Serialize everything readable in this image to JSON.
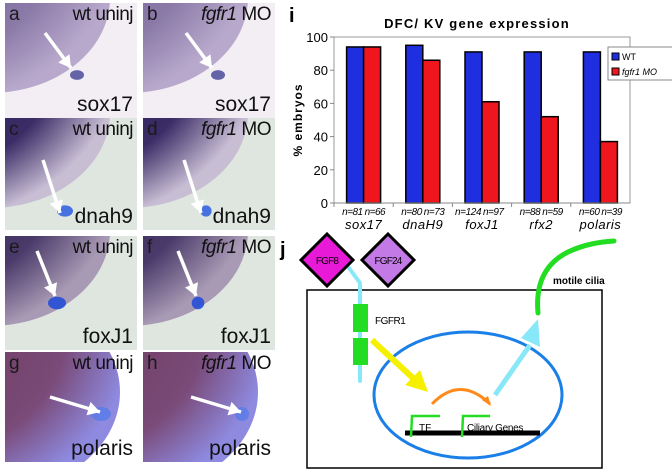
{
  "panels": [
    {
      "letter": "a",
      "condition": "wt uninj",
      "gene": "sox17",
      "mo": false
    },
    {
      "letter": "b",
      "condition_gene": "fgfr1",
      "condition": " MO",
      "gene": "sox17",
      "mo": true
    },
    {
      "letter": "c",
      "condition": "wt uninj",
      "gene": "dnah9",
      "mo": false
    },
    {
      "letter": "d",
      "condition_gene": "fgfr1",
      "condition": " MO",
      "gene": "dnah9",
      "mo": true
    },
    {
      "letter": "e",
      "condition": "wt uninj",
      "gene": "foxJ1",
      "mo": false
    },
    {
      "letter": "f",
      "condition_gene": "fgfr1",
      "condition": " MO",
      "gene": "foxJ1",
      "mo": true
    },
    {
      "letter": "g",
      "condition": "wt uninj",
      "gene": "polaris",
      "mo": false
    },
    {
      "letter": "h",
      "condition_gene": "fgfr1",
      "condition": " MO",
      "gene": "polaris",
      "mo": true
    }
  ],
  "panel_i_letter": "i",
  "panel_j_letter": "j",
  "chart_data": {
    "type": "bar",
    "title": "DFC/ KV  gene expression",
    "ylabel": "% embryos",
    "xlabel": "",
    "ylim": [
      0,
      100
    ],
    "yticks": [
      0,
      20,
      40,
      60,
      80,
      100
    ],
    "categories": [
      "sox17",
      "dnaH9",
      "foxJ1",
      "rfx2",
      "polaris"
    ],
    "n_labels": [
      [
        "n=81",
        "n=66"
      ],
      [
        "n=80",
        "n=73"
      ],
      [
        "n=124",
        "n=97"
      ],
      [
        "n=88",
        "n=59"
      ],
      [
        "n=60",
        "n=39"
      ]
    ],
    "series": [
      {
        "name": "WT",
        "color": "#1f2fe0",
        "values": [
          94,
          95,
          91,
          91,
          91
        ]
      },
      {
        "name": "fgfr1 MO",
        "color": "#f0161e",
        "values": [
          94,
          86,
          61,
          52,
          37
        ]
      }
    ],
    "legend": "top-right",
    "grid": false
  },
  "diagram": {
    "fgf8": "FGF8",
    "fgf24": "FGF24",
    "fgfr1": "FGFR1",
    "cilia": "motile cilia",
    "tf": "TF",
    "ciliary_genes": "Ciliary Genes",
    "colors": {
      "fgf8": "#e81ad8",
      "fgf24": "#c47ae6",
      "receptor": "#22dd22",
      "cyan": "#88e8f8",
      "yellow": "#f5f000",
      "orange": "#ff8a1a",
      "nucleus": "#1a7fe6"
    }
  }
}
